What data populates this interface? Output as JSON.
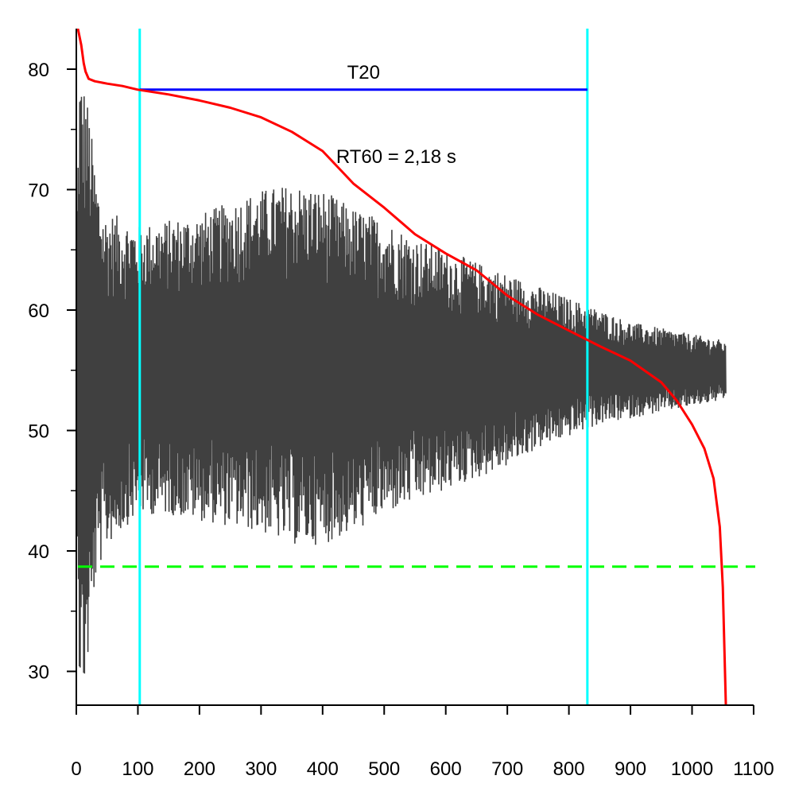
{
  "chart_data": {
    "type": "line",
    "title": "",
    "xlabel": "",
    "ylabel": "",
    "xlim": [
      0,
      1100
    ],
    "ylim": [
      27,
      83.5
    ],
    "x_ticks": [
      0,
      100,
      200,
      300,
      400,
      500,
      600,
      700,
      800,
      900,
      1000,
      1100
    ],
    "y_ticks": [
      30,
      40,
      50,
      60,
      70,
      80
    ],
    "y_minor_ticks": [
      35,
      45,
      55,
      65,
      75
    ],
    "grid": false,
    "legend": "none",
    "colors": {
      "signal": "#404040",
      "decay_curve": "#ff0000",
      "t20_line": "#0000ff",
      "markers": "#00ffff",
      "noise_floor": "#00ff00"
    },
    "signal_envelope": {
      "x": [
        0,
        5,
        12,
        20,
        30,
        45,
        60,
        100,
        150,
        200,
        250,
        300,
        350,
        400,
        450,
        500,
        550,
        600,
        650,
        700,
        750,
        800,
        850,
        900,
        950,
        1000,
        1050,
        1055
      ],
      "upper": [
        66,
        80,
        79,
        77,
        72,
        68,
        68,
        67,
        67.5,
        68,
        69,
        70,
        70.5,
        70,
        68.5,
        67.5,
        66,
        65,
        64,
        63,
        62,
        61,
        60,
        59,
        58.5,
        58,
        57.5,
        57
      ],
      "lower": [
        50,
        29,
        28,
        31,
        37,
        40,
        41,
        43,
        43,
        42.5,
        42,
        41.5,
        40.5,
        40.5,
        41.5,
        43,
        44,
        45,
        46,
        47,
        48.5,
        49.5,
        50.5,
        51,
        51.5,
        52,
        52.5,
        52.5
      ]
    },
    "series": [
      {
        "x": [
          0,
          8,
          12,
          15,
          20,
          30,
          50,
          75,
          100,
          150,
          200,
          250,
          300,
          350,
          400,
          450,
          500,
          550,
          600,
          650,
          700,
          750,
          800,
          850,
          900,
          950,
          975,
          1000,
          1020,
          1035,
          1045,
          1050,
          1055
        ],
        "y": [
          84,
          82,
          80.5,
          79.8,
          79.2,
          79,
          78.8,
          78.6,
          78.3,
          77.9,
          77.4,
          76.8,
          76.0,
          74.8,
          73.2,
          70.5,
          68.5,
          66.3,
          64.7,
          63.3,
          61.2,
          59.6,
          58.3,
          57,
          55.8,
          54,
          52.5,
          50.5,
          48.5,
          46,
          42,
          37,
          27
        ]
      }
    ],
    "t20": {
      "label": "T20",
      "x_start": 103,
      "x_end": 830,
      "y": 78.3
    },
    "rt60_label": "RT60 = 2,18 s",
    "vertical_markers": [
      103,
      830
    ],
    "noise_floor": 38.7
  }
}
